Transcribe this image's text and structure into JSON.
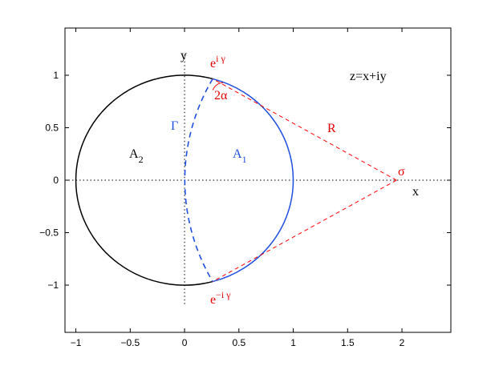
{
  "chart_data": {
    "type": "scatter",
    "title": "",
    "xlabel": "",
    "ylabel": "",
    "xlim": [
      -1.1,
      2.45
    ],
    "ylim": [
      -1.45,
      1.45
    ],
    "x_ticks": [
      -1,
      -0.5,
      0,
      0.5,
      1,
      1.5,
      2
    ],
    "x_tick_labels": [
      "−1",
      "−0.5",
      "0",
      "0.5",
      "1",
      "1.5",
      "2"
    ],
    "y_ticks": [
      -1,
      -0.5,
      0,
      0.5,
      1
    ],
    "y_tick_labels": [
      "−1",
      "−0.5",
      "0",
      "0.5",
      "1"
    ],
    "grid": false,
    "unit_circle": {
      "center": [
        0,
        0
      ],
      "radius": 1
    },
    "sigma": 1.95,
    "gamma_deg": 75,
    "point_sigma": [
      1.95,
      0
    ],
    "point_e_plus": [
      0.2588,
      0.9659
    ],
    "point_e_minus": [
      0.2588,
      -0.9659
    ],
    "colors": {
      "outer_arc": "#000000",
      "inner_arc": "#1f4fe0",
      "construction": "#ff0000",
      "axes": "#000000"
    }
  },
  "annotations": {
    "y_axis": "y",
    "x_axis": "x",
    "z_eq": "z=x+iy",
    "e_base_top": "e",
    "e_sup_top": "i γ",
    "e_base_bottom": "e",
    "e_sup_bottom": "−i γ",
    "two_alpha": "2α",
    "gamma_curve": "Γ",
    "R": "R",
    "sigma": "σ",
    "A2_base": "A",
    "A2_sub": "2",
    "A1_base": "A",
    "A1_sub": "1"
  }
}
